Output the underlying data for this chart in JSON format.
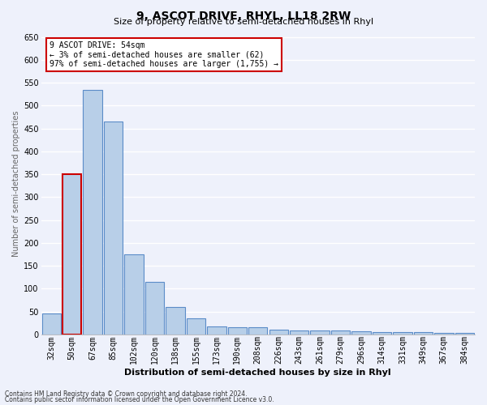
{
  "title": "9, ASCOT DRIVE, RHYL, LL18 2RW",
  "subtitle": "Size of property relative to semi-detached houses in Rhyl",
  "xlabel": "Distribution of semi-detached houses by size in Rhyl",
  "ylabel": "Number of semi-detached properties",
  "categories": [
    "32sqm",
    "50sqm",
    "67sqm",
    "85sqm",
    "102sqm",
    "120sqm",
    "138sqm",
    "155sqm",
    "173sqm",
    "190sqm",
    "208sqm",
    "226sqm",
    "243sqm",
    "261sqm",
    "279sqm",
    "296sqm",
    "314sqm",
    "331sqm",
    "349sqm",
    "367sqm",
    "384sqm"
  ],
  "values": [
    45,
    350,
    535,
    465,
    175,
    115,
    60,
    35,
    18,
    15,
    15,
    10,
    8,
    8,
    8,
    6,
    5,
    5,
    5,
    3,
    3
  ],
  "bar_color": "#b8cfe8",
  "bar_edge_color": "#5b8cc8",
  "highlight_bar_index": 1,
  "highlight_bar_edge_color": "#cc0000",
  "background_color": "#eef1fb",
  "grid_color": "#ffffff",
  "ylim": [
    0,
    660
  ],
  "yticks": [
    0,
    50,
    100,
    150,
    200,
    250,
    300,
    350,
    400,
    450,
    500,
    550,
    600,
    650
  ],
  "annotation_text": "9 ASCOT DRIVE: 54sqm\n← 3% of semi-detached houses are smaller (62)\n97% of semi-detached houses are larger (1,755) →",
  "footer1": "Contains HM Land Registry data © Crown copyright and database right 2024.",
  "footer2": "Contains public sector information licensed under the Open Government Licence v3.0.",
  "title_fontsize": 10,
  "subtitle_fontsize": 8,
  "xlabel_fontsize": 8,
  "ylabel_fontsize": 7,
  "tick_fontsize": 7,
  "annotation_fontsize": 7,
  "footer_fontsize": 5.5
}
